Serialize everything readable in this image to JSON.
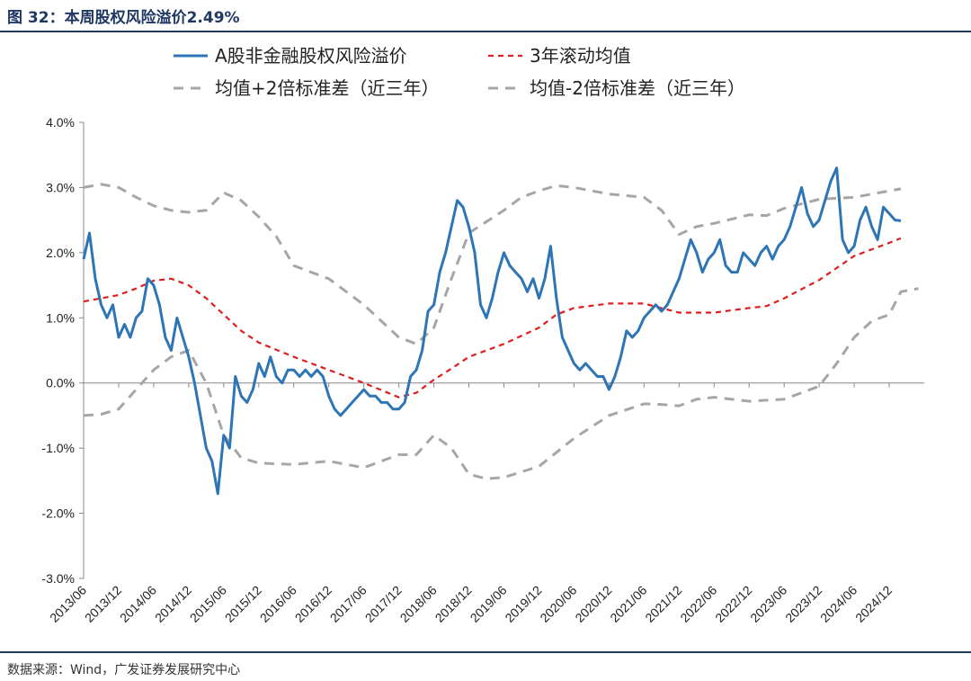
{
  "header": {
    "title": "图 32：本周股权风险溢价2.49%"
  },
  "footer": {
    "source": "数据来源：Wind，广发证券发展研究中心"
  },
  "colors": {
    "accent": "#1f3864",
    "main_series": "#2e75b6",
    "rolling_mean": "#e11d1d",
    "bands": "#a6a6a6"
  },
  "chart_data": {
    "type": "line",
    "title": "",
    "xlabel": "",
    "ylabel": "",
    "ylim": [
      -0.03,
      0.04
    ],
    "yticks": [
      -0.03,
      -0.02,
      -0.01,
      0.0,
      0.01,
      0.02,
      0.03,
      0.04
    ],
    "ytick_labels": [
      "-3.0%",
      "-2.0%",
      "-1.0%",
      "0.0%",
      "1.0%",
      "2.0%",
      "3.0%",
      "4.0%"
    ],
    "xlim": [
      "2013/06",
      "2025/06"
    ],
    "xtick_labels": [
      "2013/06",
      "2013/12",
      "2014/06",
      "2014/12",
      "2015/06",
      "2015/12",
      "2016/06",
      "2016/12",
      "2017/06",
      "2017/12",
      "2018/06",
      "2018/12",
      "2019/06",
      "2019/12",
      "2020/06",
      "2020/12",
      "2021/06",
      "2021/12",
      "2022/06",
      "2022/12",
      "2023/06",
      "2023/12",
      "2024/06",
      "2024/12"
    ],
    "grid": false,
    "legend_position": "top",
    "series": [
      {
        "name": "A股非金融股权风险溢价",
        "style": "solid",
        "color": "#2e75b6",
        "points": [
          [
            "2013/06",
            0.019
          ],
          [
            "2013/07",
            0.023
          ],
          [
            "2013/08",
            0.016
          ],
          [
            "2013/09",
            0.012
          ],
          [
            "2013/10",
            0.01
          ],
          [
            "2013/11",
            0.012
          ],
          [
            "2013/12",
            0.007
          ],
          [
            "2014/01",
            0.009
          ],
          [
            "2014/02",
            0.007
          ],
          [
            "2014/03",
            0.01
          ],
          [
            "2014/04",
            0.011
          ],
          [
            "2014/05",
            0.016
          ],
          [
            "2014/06",
            0.015
          ],
          [
            "2014/07",
            0.012
          ],
          [
            "2014/08",
            0.007
          ],
          [
            "2014/09",
            0.005
          ],
          [
            "2014/10",
            0.01
          ],
          [
            "2014/11",
            0.007
          ],
          [
            "2014/12",
            0.004
          ],
          [
            "2015/01",
            0.0
          ],
          [
            "2015/02",
            -0.005
          ],
          [
            "2015/03",
            -0.01
          ],
          [
            "2015/04",
            -0.012
          ],
          [
            "2015/05",
            -0.017
          ],
          [
            "2015/06",
            -0.008
          ],
          [
            "2015/07",
            -0.01
          ],
          [
            "2015/08",
            0.001
          ],
          [
            "2015/09",
            -0.002
          ],
          [
            "2015/10",
            -0.003
          ],
          [
            "2015/11",
            -0.001
          ],
          [
            "2015/12",
            0.003
          ],
          [
            "2016/01",
            0.001
          ],
          [
            "2016/02",
            0.004
          ],
          [
            "2016/03",
            0.001
          ],
          [
            "2016/04",
            0.0
          ],
          [
            "2016/05",
            0.002
          ],
          [
            "2016/06",
            0.002
          ],
          [
            "2016/07",
            0.001
          ],
          [
            "2016/08",
            0.002
          ],
          [
            "2016/09",
            0.001
          ],
          [
            "2016/10",
            0.002
          ],
          [
            "2016/11",
            0.001
          ],
          [
            "2016/12",
            -0.002
          ],
          [
            "2017/01",
            -0.004
          ],
          [
            "2017/02",
            -0.005
          ],
          [
            "2017/03",
            -0.004
          ],
          [
            "2017/04",
            -0.003
          ],
          [
            "2017/05",
            -0.002
          ],
          [
            "2017/06",
            -0.001
          ],
          [
            "2017/07",
            -0.002
          ],
          [
            "2017/08",
            -0.002
          ],
          [
            "2017/09",
            -0.003
          ],
          [
            "2017/10",
            -0.003
          ],
          [
            "2017/11",
            -0.004
          ],
          [
            "2017/12",
            -0.004
          ],
          [
            "2018/01",
            -0.003
          ],
          [
            "2018/02",
            0.001
          ],
          [
            "2018/03",
            0.002
          ],
          [
            "2018/04",
            0.005
          ],
          [
            "2018/05",
            0.011
          ],
          [
            "2018/06",
            0.012
          ],
          [
            "2018/07",
            0.017
          ],
          [
            "2018/08",
            0.02
          ],
          [
            "2018/09",
            0.024
          ],
          [
            "2018/10",
            0.028
          ],
          [
            "2018/11",
            0.027
          ],
          [
            "2018/12",
            0.024
          ],
          [
            "2019/01",
            0.02
          ],
          [
            "2019/02",
            0.012
          ],
          [
            "2019/03",
            0.01
          ],
          [
            "2019/04",
            0.013
          ],
          [
            "2019/05",
            0.017
          ],
          [
            "2019/06",
            0.02
          ],
          [
            "2019/07",
            0.018
          ],
          [
            "2019/08",
            0.017
          ],
          [
            "2019/09",
            0.016
          ],
          [
            "2019/10",
            0.014
          ],
          [
            "2019/11",
            0.016
          ],
          [
            "2019/12",
            0.013
          ],
          [
            "2020/01",
            0.016
          ],
          [
            "2020/02",
            0.021
          ],
          [
            "2020/03",
            0.013
          ],
          [
            "2020/04",
            0.007
          ],
          [
            "2020/05",
            0.005
          ],
          [
            "2020/06",
            0.003
          ],
          [
            "2020/07",
            0.002
          ],
          [
            "2020/08",
            0.003
          ],
          [
            "2020/09",
            0.002
          ],
          [
            "2020/10",
            0.001
          ],
          [
            "2020/11",
            0.001
          ],
          [
            "2020/12",
            -0.001
          ],
          [
            "2021/01",
            0.001
          ],
          [
            "2021/02",
            0.004
          ],
          [
            "2021/03",
            0.008
          ],
          [
            "2021/04",
            0.007
          ],
          [
            "2021/05",
            0.008
          ],
          [
            "2021/06",
            0.01
          ],
          [
            "2021/07",
            0.011
          ],
          [
            "2021/08",
            0.012
          ],
          [
            "2021/09",
            0.011
          ],
          [
            "2021/10",
            0.012
          ],
          [
            "2021/11",
            0.014
          ],
          [
            "2021/12",
            0.016
          ],
          [
            "2022/01",
            0.019
          ],
          [
            "2022/02",
            0.022
          ],
          [
            "2022/03",
            0.02
          ],
          [
            "2022/04",
            0.017
          ],
          [
            "2022/05",
            0.019
          ],
          [
            "2022/06",
            0.02
          ],
          [
            "2022/07",
            0.022
          ],
          [
            "2022/08",
            0.018
          ],
          [
            "2022/09",
            0.017
          ],
          [
            "2022/10",
            0.017
          ],
          [
            "2022/11",
            0.02
          ],
          [
            "2022/12",
            0.019
          ],
          [
            "2023/01",
            0.018
          ],
          [
            "2023/02",
            0.02
          ],
          [
            "2023/03",
            0.021
          ],
          [
            "2023/04",
            0.019
          ],
          [
            "2023/05",
            0.021
          ],
          [
            "2023/06",
            0.022
          ],
          [
            "2023/07",
            0.024
          ],
          [
            "2023/08",
            0.027
          ],
          [
            "2023/09",
            0.03
          ],
          [
            "2023/10",
            0.026
          ],
          [
            "2023/11",
            0.024
          ],
          [
            "2023/12",
            0.025
          ],
          [
            "2024/01",
            0.028
          ],
          [
            "2024/02",
            0.031
          ],
          [
            "2024/03",
            0.033
          ],
          [
            "2024/04",
            0.022
          ],
          [
            "2024/05",
            0.02
          ],
          [
            "2024/06",
            0.021
          ],
          [
            "2024/07",
            0.025
          ],
          [
            "2024/08",
            0.027
          ],
          [
            "2024/09",
            0.024
          ],
          [
            "2024/10",
            0.022
          ],
          [
            "2024/11",
            0.027
          ],
          [
            "2024/12",
            0.026
          ],
          [
            "2025/01",
            0.025
          ],
          [
            "2025/02",
            0.0249
          ]
        ]
      },
      {
        "name": "3年滚动均值",
        "style": "dashed",
        "color": "#e11d1d",
        "points": [
          [
            "2013/06",
            0.0125
          ],
          [
            "2013/12",
            0.0135
          ],
          [
            "2014/03",
            0.0145
          ],
          [
            "2014/06",
            0.0157
          ],
          [
            "2014/09",
            0.016
          ],
          [
            "2014/12",
            0.015
          ],
          [
            "2015/03",
            0.013
          ],
          [
            "2015/06",
            0.0105
          ],
          [
            "2015/09",
            0.008
          ],
          [
            "2015/12",
            0.0062
          ],
          [
            "2016/06",
            0.004
          ],
          [
            "2016/12",
            0.002
          ],
          [
            "2017/06",
            0.0
          ],
          [
            "2017/12",
            -0.0022
          ],
          [
            "2018/03",
            -0.0015
          ],
          [
            "2018/06",
            0.0005
          ],
          [
            "2018/09",
            0.0022
          ],
          [
            "2018/12",
            0.004
          ],
          [
            "2019/06",
            0.006
          ],
          [
            "2019/12",
            0.0085
          ],
          [
            "2020/03",
            0.0105
          ],
          [
            "2020/06",
            0.0115
          ],
          [
            "2020/12",
            0.0122
          ],
          [
            "2021/06",
            0.0122
          ],
          [
            "2021/12",
            0.0108
          ],
          [
            "2022/06",
            0.0108
          ],
          [
            "2022/12",
            0.0115
          ],
          [
            "2023/03",
            0.0118
          ],
          [
            "2023/06",
            0.013
          ],
          [
            "2023/12",
            0.0158
          ],
          [
            "2024/06",
            0.0195
          ],
          [
            "2024/12",
            0.0215
          ],
          [
            "2025/02",
            0.0222
          ]
        ]
      },
      {
        "name": "均值+2倍标准差（近三年）",
        "style": "dashed",
        "color": "#a6a6a6",
        "points": [
          [
            "2013/06",
            0.03
          ],
          [
            "2013/09",
            0.0305
          ],
          [
            "2013/12",
            0.03
          ],
          [
            "2014/03",
            0.0285
          ],
          [
            "2014/06",
            0.0272
          ],
          [
            "2014/09",
            0.0265
          ],
          [
            "2014/12",
            0.0262
          ],
          [
            "2015/03",
            0.0265
          ],
          [
            "2015/06",
            0.0292
          ],
          [
            "2015/09",
            0.028
          ],
          [
            "2015/12",
            0.0255
          ],
          [
            "2016/03",
            0.0225
          ],
          [
            "2016/06",
            0.018
          ],
          [
            "2016/09",
            0.017
          ],
          [
            "2016/12",
            0.016
          ],
          [
            "2017/03",
            0.014
          ],
          [
            "2017/06",
            0.012
          ],
          [
            "2017/09",
            0.0095
          ],
          [
            "2017/12",
            0.007
          ],
          [
            "2018/03",
            0.006
          ],
          [
            "2018/06",
            0.0085
          ],
          [
            "2018/09",
            0.016
          ],
          [
            "2018/12",
            0.023
          ],
          [
            "2019/06",
            0.0265
          ],
          [
            "2019/09",
            0.0285
          ],
          [
            "2019/12",
            0.0295
          ],
          [
            "2020/03",
            0.0303
          ],
          [
            "2020/06",
            0.03
          ],
          [
            "2020/12",
            0.029
          ],
          [
            "2021/06",
            0.0285
          ],
          [
            "2021/09",
            0.0265
          ],
          [
            "2021/12",
            0.0228
          ],
          [
            "2022/03",
            0.024
          ],
          [
            "2022/06",
            0.0245
          ],
          [
            "2022/12",
            0.0258
          ],
          [
            "2023/03",
            0.0257
          ],
          [
            "2023/06",
            0.0268
          ],
          [
            "2023/12",
            0.0282
          ],
          [
            "2024/06",
            0.0285
          ],
          [
            "2024/09",
            0.029
          ],
          [
            "2025/02",
            0.0298
          ]
        ]
      },
      {
        "name": "均值-2倍标准差（近三年）",
        "style": "dashed",
        "color": "#a6a6a6",
        "points": [
          [
            "2013/06",
            -0.005
          ],
          [
            "2013/09",
            -0.0048
          ],
          [
            "2013/12",
            -0.004
          ],
          [
            "2014/03",
            -0.001
          ],
          [
            "2014/06",
            0.002
          ],
          [
            "2014/09",
            0.004
          ],
          [
            "2014/12",
            0.005
          ],
          [
            "2015/03",
            0.0
          ],
          [
            "2015/06",
            -0.008
          ],
          [
            "2015/09",
            -0.0115
          ],
          [
            "2015/12",
            -0.0123
          ],
          [
            "2016/06",
            -0.0125
          ],
          [
            "2016/12",
            -0.012
          ],
          [
            "2017/06",
            -0.013
          ],
          [
            "2017/12",
            -0.011
          ],
          [
            "2018/03",
            -0.011
          ],
          [
            "2018/06",
            -0.008
          ],
          [
            "2018/09",
            -0.01
          ],
          [
            "2018/12",
            -0.014
          ],
          [
            "2019/03",
            -0.0147
          ],
          [
            "2019/06",
            -0.0145
          ],
          [
            "2019/12",
            -0.0128
          ],
          [
            "2020/06",
            -0.0085
          ],
          [
            "2020/12",
            -0.005
          ],
          [
            "2021/06",
            -0.0032
          ],
          [
            "2021/09",
            -0.0033
          ],
          [
            "2021/12",
            -0.0035
          ],
          [
            "2022/03",
            -0.0025
          ],
          [
            "2022/06",
            -0.0022
          ],
          [
            "2022/12",
            -0.0028
          ],
          [
            "2023/06",
            -0.0025
          ],
          [
            "2023/09",
            -0.0015
          ],
          [
            "2023/12",
            -0.0005
          ],
          [
            "2024/03",
            0.003
          ],
          [
            "2024/06",
            0.007
          ],
          [
            "2024/09",
            0.0095
          ],
          [
            "2024/12",
            0.0105
          ],
          [
            "2025/02",
            0.014
          ],
          [
            "2025/05",
            0.0145
          ]
        ]
      }
    ]
  }
}
